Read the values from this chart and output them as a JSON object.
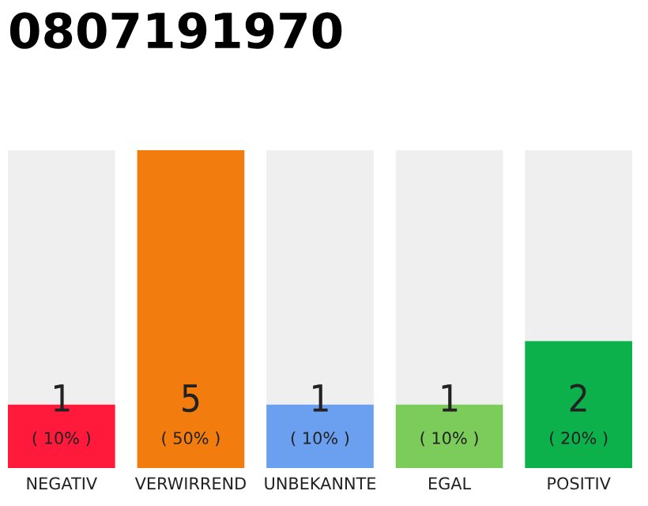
{
  "chart_data": {
    "type": "bar",
    "title": "0807191970",
    "stacked": true,
    "legend": false,
    "grid": false,
    "categories": [
      "NEGATIV",
      "VERWIRREND",
      "UNBEKANNTE",
      "EGAL",
      "POSITIV"
    ],
    "series": [
      {
        "values": [
          1,
          5,
          1,
          1,
          2
        ],
        "colors": [
          "#ff1a3c",
          "#f27c0e",
          "#6aa0ef",
          "#7ccc5c",
          "#0db14b"
        ],
        "value_labels": [
          "1\n( 10% )",
          "5\n( 50% )",
          "1\n( 10% )",
          "1\n( 10% )",
          "2\n( 20% )"
        ]
      },
      {
        "values": [
          4,
          0,
          4,
          4,
          3
        ],
        "color": "#efefef"
      }
    ]
  }
}
